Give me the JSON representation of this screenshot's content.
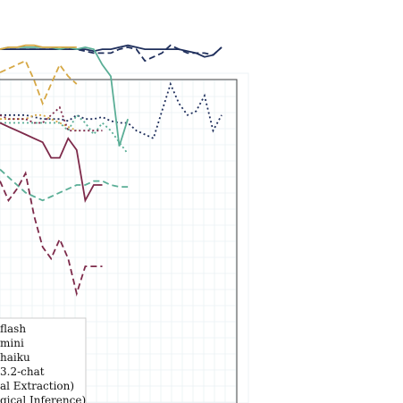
{
  "chart_data": {
    "type": "line",
    "title": "",
    "xlabel": "",
    "ylabel": "",
    "xlim": [
      0,
      26
    ],
    "ylim": [
      0,
      1
    ],
    "grid": true,
    "legend_placement": "bottom-left",
    "series": [
      {
        "name": "",
        "color": "#1f2f5c",
        "dash": "solid",
        "x": [
          0,
          1,
          2,
          3,
          4,
          5,
          6,
          7,
          8,
          9,
          10,
          11,
          12,
          13,
          14,
          15,
          16,
          17,
          18,
          19,
          20,
          21,
          22,
          23,
          24,
          25,
          26
        ],
        "y": [
          0.91,
          0.91,
          0.91,
          0.91,
          0.91,
          0.91,
          0.91,
          0.91,
          0.91,
          0.91,
          0.91,
          0.905,
          0.91,
          0.91,
          0.915,
          0.92,
          0.915,
          0.91,
          0.91,
          0.91,
          0.91,
          0.91,
          0.905,
          0.9,
          0.89,
          0.895,
          0.915
        ]
      },
      {
        "name": "",
        "color": "#1f2f5c",
        "dash": "dashed",
        "x": [
          0,
          1,
          2,
          3,
          4,
          5,
          6,
          7,
          8,
          9,
          10,
          11,
          12,
          13,
          14,
          15,
          16,
          17,
          18,
          19,
          20,
          21,
          22,
          23,
          24,
          25,
          26
        ],
        "y": [
          0.91,
          0.91,
          0.91,
          0.91,
          0.91,
          0.91,
          0.91,
          0.91,
          0.91,
          0.91,
          0.905,
          0.9,
          0.9,
          0.9,
          0.91,
          0.915,
          0.91,
          0.88,
          0.89,
          0.9,
          0.92,
          0.91,
          0.9,
          0.9,
          0.9,
          0.895,
          0.915
        ]
      },
      {
        "name": "",
        "color": "#1f2f5c",
        "dash": "dotted",
        "x": [
          0,
          1,
          2,
          3,
          4,
          5,
          6,
          7,
          8,
          9,
          10,
          11,
          12,
          13,
          14,
          15,
          16,
          17,
          18,
          19,
          20,
          21,
          22,
          23,
          24,
          25,
          26
        ],
        "y": [
          0.74,
          0.74,
          0.74,
          0.74,
          0.735,
          0.73,
          0.73,
          0.73,
          0.725,
          0.74,
          0.73,
          0.73,
          0.735,
          0.725,
          0.72,
          0.72,
          0.7,
          0.69,
          0.68,
          0.75,
          0.82,
          0.77,
          0.74,
          0.75,
          0.79,
          0.7,
          0.74
        ]
      },
      {
        "name": "",
        "color": "#5aae96",
        "dash": "solid",
        "x": [
          0,
          1,
          2,
          3,
          4,
          5,
          6,
          7,
          8,
          9,
          10,
          11,
          12,
          13,
          14,
          15
        ],
        "y": [
          0.91,
          0.915,
          0.915,
          0.915,
          0.915,
          0.915,
          0.915,
          0.91,
          0.915,
          0.91,
          0.915,
          0.91,
          0.87,
          0.84,
          0.66,
          0.73
        ]
      },
      {
        "name": "",
        "color": "#5aae96",
        "dash": "dashed",
        "x": [
          0,
          1,
          2,
          3,
          4,
          5,
          6,
          7,
          8,
          9,
          10,
          11,
          12,
          13,
          14,
          15
        ],
        "y": [
          0.6,
          0.58,
          0.56,
          0.54,
          0.53,
          0.52,
          0.53,
          0.54,
          0.55,
          0.56,
          0.56,
          0.57,
          0.57,
          0.56,
          0.555,
          0.555
        ]
      },
      {
        "name": "",
        "color": "#5aae96",
        "dash": "dotted",
        "x": [
          0,
          1,
          2,
          3,
          4,
          5,
          6,
          7,
          8,
          9,
          10,
          11,
          12,
          13,
          14,
          15
        ],
        "y": [
          0.72,
          0.72,
          0.72,
          0.72,
          0.72,
          0.72,
          0.72,
          0.72,
          0.7,
          0.74,
          0.72,
          0.69,
          0.72,
          0.7,
          0.67,
          0.64
        ]
      },
      {
        "name": "",
        "color": "#d6a845",
        "dash": "solid",
        "x": [
          0,
          1,
          2,
          3,
          4,
          5,
          6,
          7,
          8,
          9
        ],
        "y": [
          0.91,
          0.915,
          0.915,
          0.92,
          0.92,
          0.915,
          0.915,
          0.915,
          0.915,
          0.915
        ]
      },
      {
        "name": "",
        "color": "#d6a845",
        "dash": "dashed",
        "x": [
          0,
          1,
          2,
          3,
          4,
          5,
          6,
          7,
          8,
          9
        ],
        "y": [
          0.85,
          0.86,
          0.87,
          0.88,
          0.83,
          0.77,
          0.82,
          0.87,
          0.84,
          0.82
        ]
      },
      {
        "name": "",
        "color": "#d6a845",
        "dash": "dotted",
        "x": [
          0,
          1,
          2,
          3,
          4,
          5,
          6,
          7,
          8,
          9
        ],
        "y": [
          0.73,
          0.73,
          0.73,
          0.73,
          0.74,
          0.74,
          0.73,
          0.72,
          0.71,
          0.7
        ]
      },
      {
        "name": "",
        "color": "#7d2a4a",
        "dash": "solid",
        "x": [
          0,
          1,
          2,
          3,
          4,
          5,
          6,
          7,
          8,
          9,
          10,
          11,
          12
        ],
        "y": [
          0.72,
          0.71,
          0.7,
          0.69,
          0.68,
          0.67,
          0.63,
          0.63,
          0.68,
          0.65,
          0.52,
          0.56,
          0.56
        ]
      },
      {
        "name": "",
        "color": "#7d2a4a",
        "dash": "dashed",
        "x": [
          0,
          1,
          2,
          3,
          4,
          5,
          6,
          7,
          8,
          9,
          10,
          11,
          12
        ],
        "y": [
          0.57,
          0.52,
          0.55,
          0.59,
          0.48,
          0.4,
          0.37,
          0.42,
          0.37,
          0.28,
          0.35,
          0.35,
          0.35
        ]
      },
      {
        "name": "",
        "color": "#7d2a4a",
        "dash": "dotted",
        "x": [
          0,
          1,
          2,
          3,
          4,
          5,
          6,
          7,
          8,
          9,
          10,
          11,
          12
        ],
        "y": [
          0.74,
          0.73,
          0.73,
          0.73,
          0.72,
          0.72,
          0.74,
          0.76,
          0.7,
          0.7,
          0.7,
          0.7,
          0.7
        ]
      }
    ],
    "legend": [
      {
        "label": "flash"
      },
      {
        "label": "mini"
      },
      {
        "label": "haiku"
      },
      {
        "label": "3.2-chat"
      },
      {
        "label": "al Extraction)"
      },
      {
        "label": "gical Inference)"
      }
    ]
  }
}
